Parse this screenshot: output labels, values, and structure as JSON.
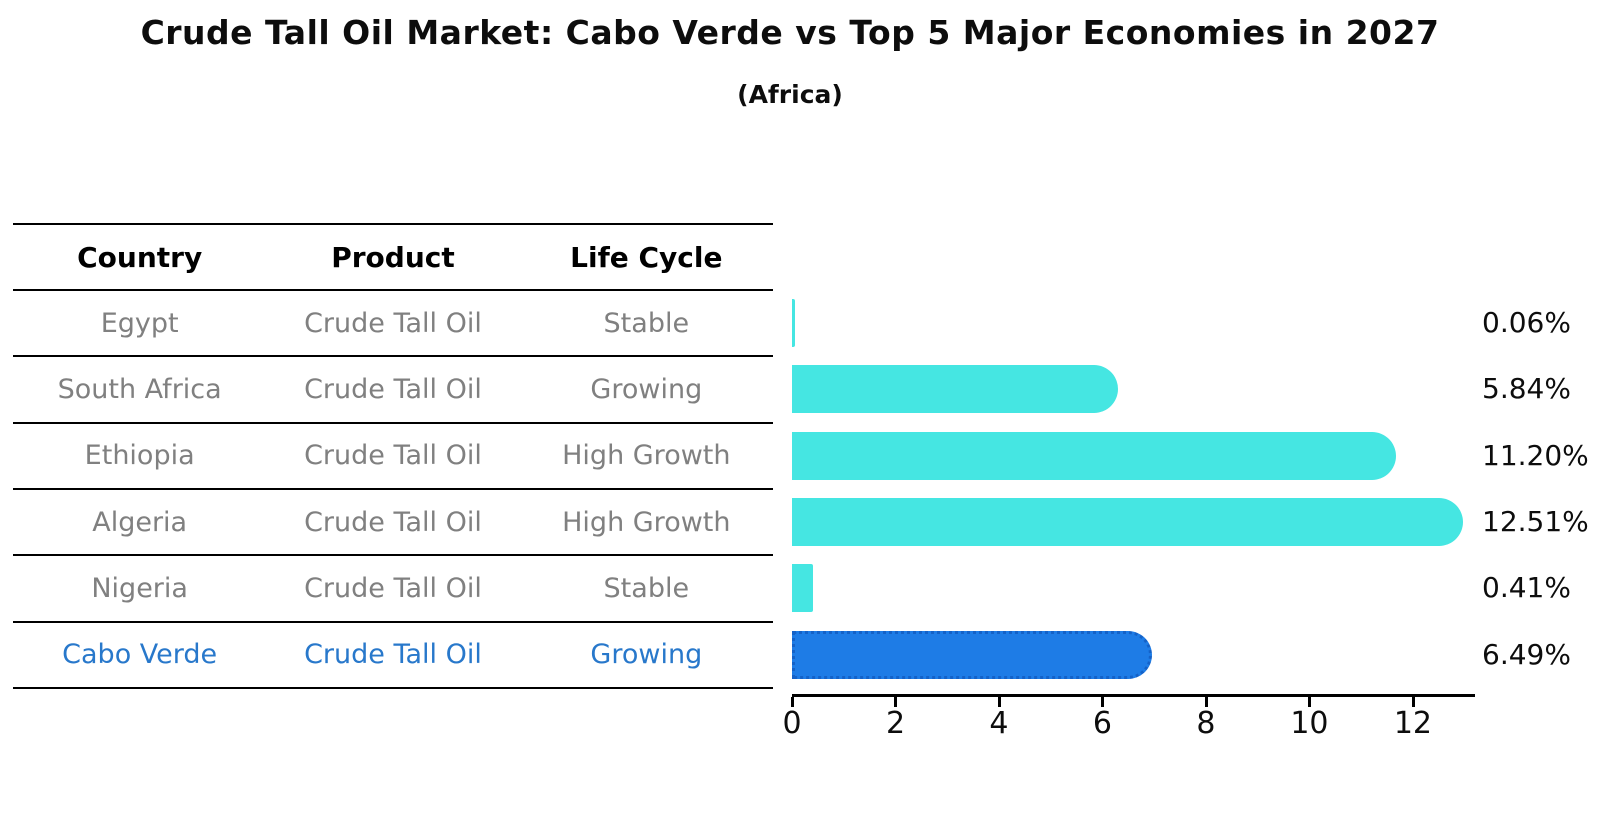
{
  "title": "Crude Tall Oil Market: Cabo Verde vs Top 5 Major Economies in 2027",
  "subtitle": "(Africa)",
  "table": {
    "columns": [
      "Country",
      "Product",
      "Life Cycle"
    ],
    "rows": [
      {
        "country": "Egypt",
        "product": "Crude Tall Oil",
        "life_cycle": "Stable",
        "highlight": false
      },
      {
        "country": "South Africa",
        "product": "Crude Tall Oil",
        "life_cycle": "Growing",
        "highlight": false
      },
      {
        "country": "Ethiopia",
        "product": "Crude Tall Oil",
        "life_cycle": "High Growth",
        "highlight": false
      },
      {
        "country": "Algeria",
        "product": "Crude Tall Oil",
        "life_cycle": "High Growth",
        "highlight": false
      },
      {
        "country": "Nigeria",
        "product": "Crude Tall Oil",
        "life_cycle": "Stable",
        "highlight": false
      },
      {
        "country": "Cabo Verde",
        "product": "Crude Tall Oil",
        "life_cycle": "Growing",
        "highlight": true
      }
    ]
  },
  "chart_data": {
    "type": "bar",
    "orientation": "horizontal",
    "title": "Crude Tall Oil Market: Cabo Verde vs Top 5 Major Economies in 2027",
    "subtitle": "(Africa)",
    "categories": [
      "Egypt",
      "South Africa",
      "Ethiopia",
      "Algeria",
      "Nigeria",
      "Cabo Verde"
    ],
    "values": [
      0.06,
      5.84,
      11.2,
      12.51,
      0.41,
      6.49
    ],
    "value_labels": [
      "0.06%",
      "5.84%",
      "11.20%",
      "12.51%",
      "0.41%",
      "6.49%"
    ],
    "x_ticks": [
      0,
      2,
      4,
      6,
      8,
      10,
      12
    ],
    "xlim": [
      0,
      13.2
    ],
    "grid": false,
    "legend": false,
    "bar_color": "#45e6e2",
    "highlight_index": 5,
    "highlight_bar_color": "#1e7ce6",
    "highlight_bar_border_color": "#1462c8",
    "highlight_text_color": "#2878cb",
    "muted_text_color": "#808080",
    "axis_color": "#000000"
  }
}
